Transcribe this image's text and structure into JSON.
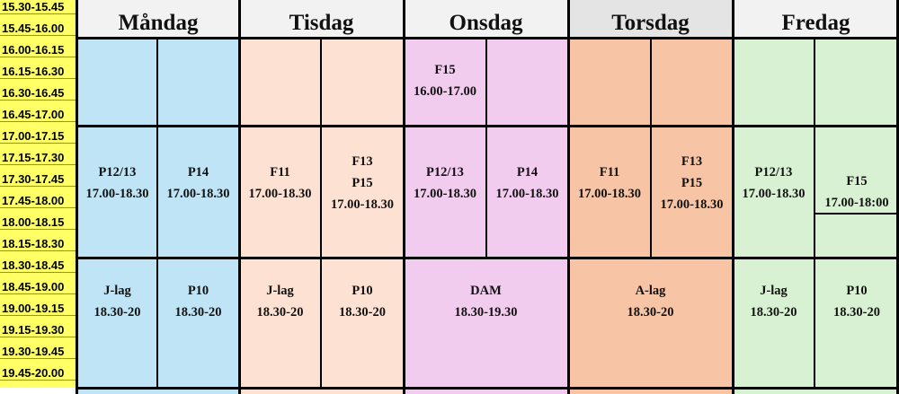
{
  "days": [
    "Måndag",
    "Tisdag",
    "Onsdag",
    "Torsdag",
    "Fredag"
  ],
  "colors": {
    "mandag": "#bfe4f5",
    "tisdag": "#fde1d3",
    "onsdag": "#f1ccef",
    "torsdag": "#f7c4a6",
    "fredag": "#d9f1d3",
    "time": "#ffff66"
  },
  "times": [
    "15.30-15.45",
    "15.45-16.00",
    "16.00-16.15",
    "16.15-16.30",
    "16.30-16.45",
    "16.45-17.00",
    "17.00-17.15",
    "17.15-17.30",
    "17.30-17.45",
    "17.45-18.00",
    "18.00-18.15",
    "18.15-18.30",
    "18.30-18.45",
    "18.45-19.00",
    "19.00-19.15",
    "19.15-19.30",
    "19.30-19.45",
    "19.45-20.00"
  ],
  "sessions": {
    "ons_f15_team": "F15",
    "ons_f15_time": "16.00-17.00",
    "man_p1213_team": "P12/13",
    "man_p1213_time": "17.00-18.30",
    "man_p14_team": "P14",
    "man_p14_time": "17.00-18.30",
    "tis_f11_team": "F11",
    "tis_f11_time": "17.00-18.30",
    "tis_f13_team": "F13",
    "tis_p15_team": "P15",
    "tis_f13p15_time": "17.00-18.30",
    "ons_p1213_team": "P12/13",
    "ons_p1213_time": "17.00-18.30",
    "ons_p14_team": "P14",
    "ons_p14_time": "17.00-18.30",
    "tor_f11_team": "F11",
    "tor_f11_time": "17.00-18.30",
    "tor_f13_team": "F13",
    "tor_p15_team": "P15",
    "tor_f13p15_time": "17.00-18.30",
    "fre_p1213_team": "P12/13",
    "fre_p1213_time": "17.00-18.30",
    "fre_f15_team": "F15",
    "fre_f15_time": "17.00-18:00",
    "man_jlag_team": "J-lag",
    "man_jlag_time": "18.30-20",
    "man_p10_team": "P10",
    "man_p10_time": "18.30-20",
    "tis_jlag_team": "J-lag",
    "tis_jlag_time": "18.30-20",
    "tis_p10_team": "P10",
    "tis_p10_time": "18.30-20",
    "ons_dam_team": "DAM",
    "ons_dam_time": "18.30-19.30",
    "tor_alag_team": "A-lag",
    "tor_alag_time": "18.30-20",
    "fre_jlag_team": "J-lag",
    "fre_jlag_time": "18.30-20",
    "fre_p10_team": "P10",
    "fre_p10_time": "18.30-20"
  }
}
